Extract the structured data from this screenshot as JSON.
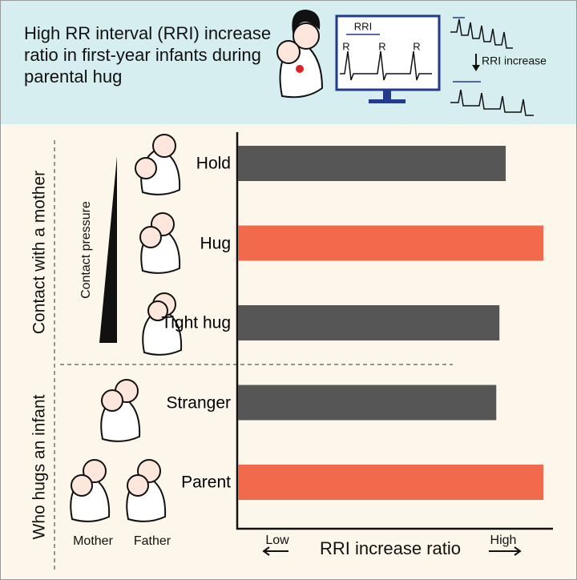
{
  "header": {
    "title": "High RR interval (RRI) increase ratio in first-year infants during parental hug",
    "ecg_interval": "RRI",
    "ecg_peaks": [
      "R",
      "R",
      "R"
    ],
    "ecg_change": "RRI increase"
  },
  "chart_data": {
    "type": "bar",
    "orientation": "horizontal",
    "categories": [
      "Hold",
      "Hug",
      "Tight hug",
      "Stranger",
      "Parent"
    ],
    "values": [
      85,
      97,
      83,
      82,
      97
    ],
    "colors": [
      "#565656",
      "#f26a4c",
      "#565656",
      "#565656",
      "#f26a4c"
    ],
    "xlim": [
      0,
      100
    ],
    "x_label": "RRI increase ratio",
    "x_low": "Low",
    "x_high": "High",
    "group_labels": [
      "Contact with a mother",
      "Who hugs an infant"
    ],
    "pressure_label": "Contact pressure",
    "icon_labels": [
      "Mother",
      "Father"
    ]
  }
}
